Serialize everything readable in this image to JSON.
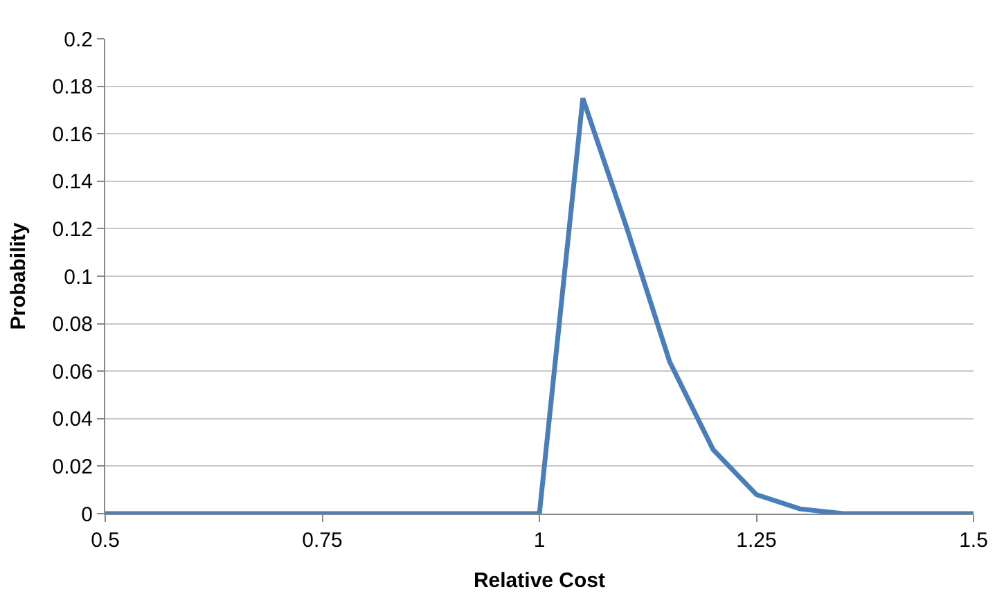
{
  "chart_data": {
    "type": "line",
    "xlabel": "Relative Cost",
    "ylabel": "Probability",
    "x": [
      0.5,
      0.55,
      0.6,
      0.65,
      0.7,
      0.75,
      0.8,
      0.85,
      0.9,
      0.95,
      1.0,
      1.05,
      1.1,
      1.15,
      1.2,
      1.25,
      1.3,
      1.35,
      1.4,
      1.45,
      1.5
    ],
    "series": [
      {
        "color": "#4a7ebb",
        "values": [
          0,
          0,
          0,
          0,
          0,
          0,
          0,
          0,
          0,
          0,
          0,
          0.175,
          0.121,
          0.064,
          0.027,
          0.008,
          0.002,
          0,
          0,
          0,
          0
        ]
      }
    ],
    "xlim": [
      0.5,
      1.5
    ],
    "xticks": [
      0.5,
      0.75,
      1,
      1.25,
      1.5
    ],
    "ylim": [
      0,
      0.2
    ],
    "yticks": [
      0,
      0.02,
      0.04,
      0.06,
      0.08,
      0.1,
      0.12,
      0.14,
      0.16,
      0.18,
      0.2
    ],
    "grid": "y",
    "marker": "none",
    "line_style": "solid"
  }
}
